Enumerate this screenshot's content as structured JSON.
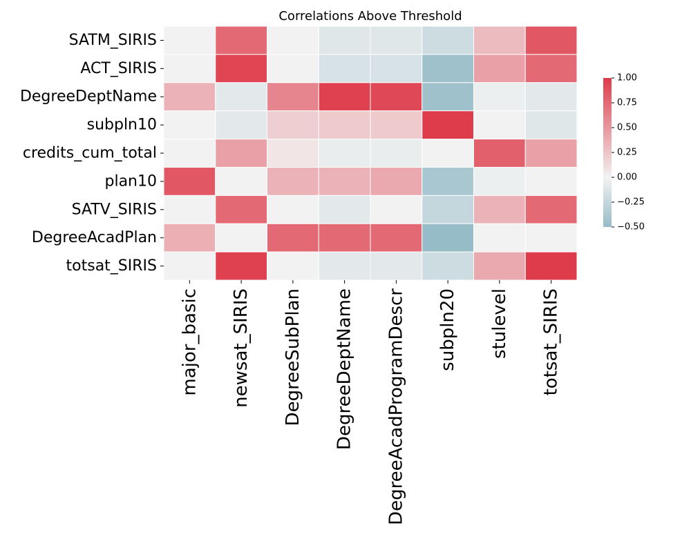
{
  "chart_data": {
    "type": "heatmap",
    "title": "Correlations Above Threshold",
    "x_categories": [
      "major_basic",
      "newsat_SIRIS",
      "DegreeSubPlan",
      "DegreeDeptName",
      "DegreeAcadProgramDescr",
      "subpln20",
      "stulevel",
      "totsat_SIRIS"
    ],
    "y_categories": [
      "SATM_SIRIS",
      "ACT_SIRIS",
      "DegreeDeptName",
      "subpln10",
      "credits_cum_total",
      "plan10",
      "SATV_SIRIS",
      "DegreeAcadPlan",
      "totsat_SIRIS"
    ],
    "values": [
      [
        0.0,
        0.75,
        0.0,
        -0.1,
        -0.1,
        -0.2,
        0.3,
        0.85
      ],
      [
        0.0,
        0.95,
        0.0,
        -0.15,
        -0.15,
        -0.45,
        0.45,
        0.75
      ],
      [
        0.35,
        -0.08,
        0.6,
        0.97,
        0.93,
        -0.45,
        -0.03,
        -0.08
      ],
      [
        0.0,
        -0.08,
        0.2,
        0.22,
        0.22,
        1.0,
        0.0,
        -0.1
      ],
      [
        0.0,
        0.45,
        0.07,
        -0.05,
        -0.05,
        0.0,
        0.8,
        0.45
      ],
      [
        0.85,
        0.0,
        0.35,
        0.35,
        0.4,
        -0.4,
        -0.03,
        0.0
      ],
      [
        0.0,
        0.75,
        0.0,
        -0.08,
        0.0,
        -0.25,
        0.35,
        0.75
      ],
      [
        0.37,
        0.0,
        0.75,
        0.75,
        0.75,
        -0.5,
        0.0,
        0.0
      ],
      [
        0.0,
        0.97,
        0.0,
        -0.08,
        -0.08,
        -0.2,
        0.4,
        1.0
      ]
    ],
    "colorbar": {
      "min": -0.5,
      "max": 1.0,
      "ticks": [
        "1.00",
        "0.75",
        "0.50",
        "0.25",
        "0.00",
        "−0.25",
        "−0.50"
      ],
      "tick_values": [
        1.0,
        0.75,
        0.5,
        0.25,
        0.0,
        -0.25,
        -0.5
      ]
    },
    "colors": {
      "negative": "#95bcc7",
      "center": "#f2f2f2",
      "positive": "#de3c4b"
    },
    "legend_position": "right"
  }
}
